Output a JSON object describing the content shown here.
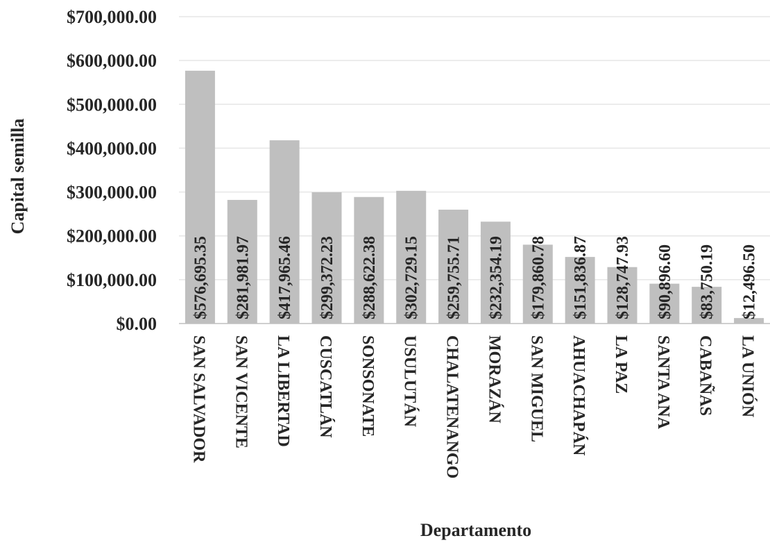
{
  "chart_data": {
    "type": "bar",
    "title": "",
    "xlabel": "Departamento",
    "ylabel": "Capital semilla",
    "ylim": [
      0,
      700000
    ],
    "ytick_step": 100000,
    "grid": true,
    "legend": "none",
    "bar_color": "#bfbfbf",
    "grid_color": "#e6e6e6",
    "text_color": "#262626",
    "yticks": [
      "$0.00",
      "$100,000.00",
      "$200,000.00",
      "$300,000.00",
      "$400,000.00",
      "$500,000.00",
      "$600,000.00",
      "$700,000.00"
    ],
    "categories": [
      "SAN SALVADOR",
      "SAN VICENTE",
      "LA LIBERTAD",
      "CUSCATLÁN",
      "SONSONATE",
      "USULUTÁN",
      "CHALATENANGO",
      "MORAZÁN",
      "SAN MIGUEL",
      "AHUACHAPÁN",
      "LA PAZ",
      "SANTA ANA",
      "CABAÑAS",
      "LA UNIÓN"
    ],
    "values": [
      576695.35,
      281981.97,
      417965.46,
      299372.23,
      288622.38,
      302729.15,
      259755.71,
      232354.19,
      179860.78,
      151836.87,
      128747.93,
      90896.6,
      83750.19,
      12496.5
    ],
    "data_labels": [
      "$576,695.35",
      "$281,981.97",
      "$417,965.46",
      "$299,372.23",
      "$288,622.38",
      "$302,729.15",
      "$259,755.71",
      "$232,354.19",
      "$179,860.78",
      "$151,836.87",
      "$128,747.93",
      "$90,896.60",
      "$83,750.19",
      "$12,496.50"
    ]
  }
}
